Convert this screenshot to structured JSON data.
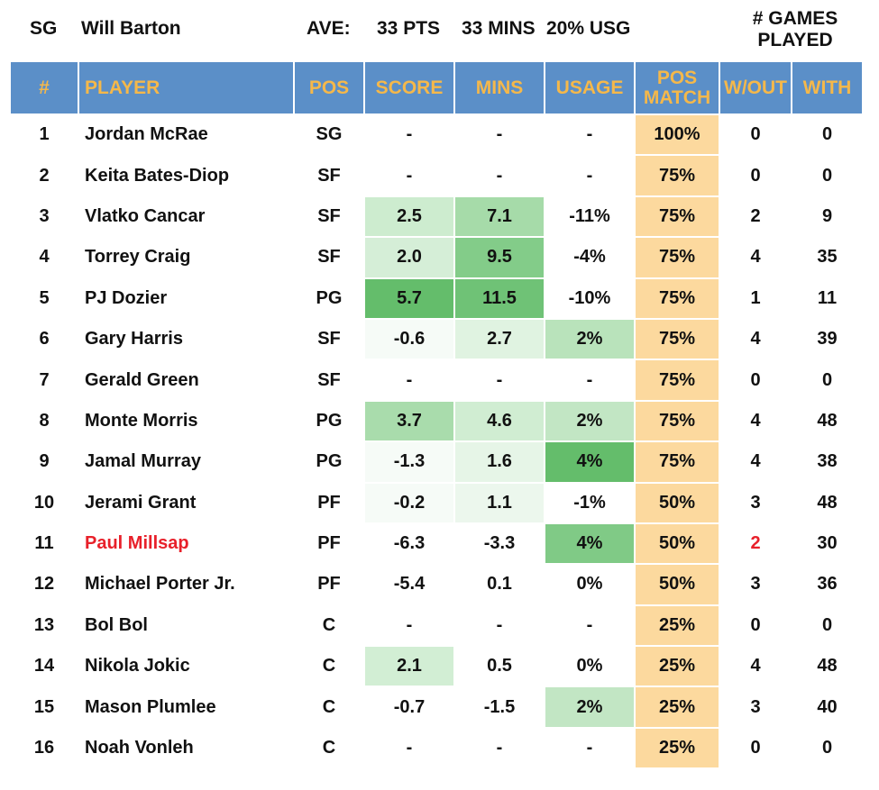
{
  "header": {
    "position": "SG",
    "player_name": "Will Barton",
    "ave_label": "AVE:",
    "pts": "33 PTS",
    "mins": "33 MINS",
    "usg": "20% USG",
    "games_played_label_line1": "# GAMES",
    "games_played_label_line2": "PLAYED"
  },
  "columns": {
    "num": "#",
    "player": "PLAYER",
    "pos": "POS",
    "score": "SCORE",
    "mins": "MINS",
    "usage": "USAGE",
    "pos_match_line1": "POS",
    "pos_match_line2": "MATCH",
    "wout": "W/OUT",
    "with": "WITH"
  },
  "colors": {
    "header_bg": "#5b8fc8",
    "header_text": "#f5b84a",
    "pos_match_bg": "#fcd99e",
    "highlight_red": "#e8202a"
  },
  "rows": [
    {
      "num": "1",
      "player": "Jordan McRae",
      "pos": "SG",
      "score": "-",
      "mins": "-",
      "usage": "-",
      "pos_match": "100%",
      "wout": "0",
      "with": "0",
      "score_bg": "",
      "mins_bg": "",
      "usage_bg": "",
      "highlight": false
    },
    {
      "num": "2",
      "player": "Keita Bates-Diop",
      "pos": "SF",
      "score": "-",
      "mins": "-",
      "usage": "-",
      "pos_match": "75%",
      "wout": "0",
      "with": "0",
      "score_bg": "",
      "mins_bg": "",
      "usage_bg": "",
      "highlight": false
    },
    {
      "num": "3",
      "player": "Vlatko Cancar",
      "pos": "SF",
      "score": "2.5",
      "mins": "7.1",
      "usage": "-11%",
      "pos_match": "75%",
      "wout": "2",
      "with": "9",
      "score_bg": "#cdeccf",
      "mins_bg": "#a6dba9",
      "usage_bg": "",
      "highlight": false
    },
    {
      "num": "4",
      "player": "Torrey Craig",
      "pos": "SF",
      "score": "2.0",
      "mins": "9.5",
      "usage": "-4%",
      "pos_match": "75%",
      "wout": "4",
      "with": "35",
      "score_bg": "#d5eed7",
      "mins_bg": "#83cc89",
      "usage_bg": "",
      "highlight": false
    },
    {
      "num": "5",
      "player": "PJ Dozier",
      "pos": "PG",
      "score": "5.7",
      "mins": "11.5",
      "usage": "-10%",
      "pos_match": "75%",
      "wout": "1",
      "with": "11",
      "score_bg": "#64bd6b",
      "mins_bg": "#6fc276",
      "usage_bg": "",
      "highlight": false
    },
    {
      "num": "6",
      "player": "Gary Harris",
      "pos": "SF",
      "score": "-0.6",
      "mins": "2.7",
      "usage": "2%",
      "pos_match": "75%",
      "wout": "4",
      "with": "39",
      "score_bg": "#f6fbf7",
      "mins_bg": "#e0f3e1",
      "usage_bg": "#b9e3bb",
      "highlight": false
    },
    {
      "num": "7",
      "player": "Gerald Green",
      "pos": "SF",
      "score": "-",
      "mins": "-",
      "usage": "-",
      "pos_match": "75%",
      "wout": "0",
      "with": "0",
      "score_bg": "",
      "mins_bg": "",
      "usage_bg": "",
      "highlight": false
    },
    {
      "num": "8",
      "player": "Monte Morris",
      "pos": "PG",
      "score": "3.7",
      "mins": "4.6",
      "usage": "2%",
      "pos_match": "75%",
      "wout": "4",
      "with": "48",
      "score_bg": "#a9dcac",
      "mins_bg": "#d0edd2",
      "usage_bg": "#c2e6c4",
      "highlight": false
    },
    {
      "num": "9",
      "player": "Jamal Murray",
      "pos": "PG",
      "score": "-1.3",
      "mins": "1.6",
      "usage": "4%",
      "pos_match": "75%",
      "wout": "4",
      "with": "38",
      "score_bg": "#f6fbf7",
      "mins_bg": "#e6f5e7",
      "usage_bg": "#64bd6b",
      "highlight": false
    },
    {
      "num": "10",
      "player": "Jerami Grant",
      "pos": "PF",
      "score": "-0.2",
      "mins": "1.1",
      "usage": "-1%",
      "pos_match": "50%",
      "wout": "3",
      "with": "48",
      "score_bg": "#f6fbf7",
      "mins_bg": "#ecf7ed",
      "usage_bg": "",
      "highlight": false
    },
    {
      "num": "11",
      "player": "Paul Millsap",
      "pos": "PF",
      "score": "-6.3",
      "mins": "-3.3",
      "usage": "4%",
      "pos_match": "50%",
      "wout": "2",
      "with": "30",
      "score_bg": "",
      "mins_bg": "",
      "usage_bg": "#80ca86",
      "highlight": true
    },
    {
      "num": "12",
      "player": "Michael Porter Jr.",
      "pos": "PF",
      "score": "-5.4",
      "mins": "0.1",
      "usage": "0%",
      "pos_match": "50%",
      "wout": "3",
      "with": "36",
      "score_bg": "",
      "mins_bg": "",
      "usage_bg": "",
      "highlight": false
    },
    {
      "num": "13",
      "player": "Bol Bol",
      "pos": "C",
      "score": "-",
      "mins": "-",
      "usage": "-",
      "pos_match": "25%",
      "wout": "0",
      "with": "0",
      "score_bg": "",
      "mins_bg": "",
      "usage_bg": "",
      "highlight": false
    },
    {
      "num": "14",
      "player": "Nikola Jokic",
      "pos": "C",
      "score": "2.1",
      "mins": "0.5",
      "usage": "0%",
      "pos_match": "25%",
      "wout": "4",
      "with": "48",
      "score_bg": "#d2eed4",
      "mins_bg": "",
      "usage_bg": "",
      "highlight": false
    },
    {
      "num": "15",
      "player": "Mason Plumlee",
      "pos": "C",
      "score": "-0.7",
      "mins": "-1.5",
      "usage": "2%",
      "pos_match": "25%",
      "wout": "3",
      "with": "40",
      "score_bg": "",
      "mins_bg": "",
      "usage_bg": "#c2e6c4",
      "highlight": false
    },
    {
      "num": "16",
      "player": "Noah Vonleh",
      "pos": "C",
      "score": "-",
      "mins": "-",
      "usage": "-",
      "pos_match": "25%",
      "wout": "0",
      "with": "0",
      "score_bg": "",
      "mins_bg": "",
      "usage_bg": "",
      "highlight": false
    }
  ]
}
